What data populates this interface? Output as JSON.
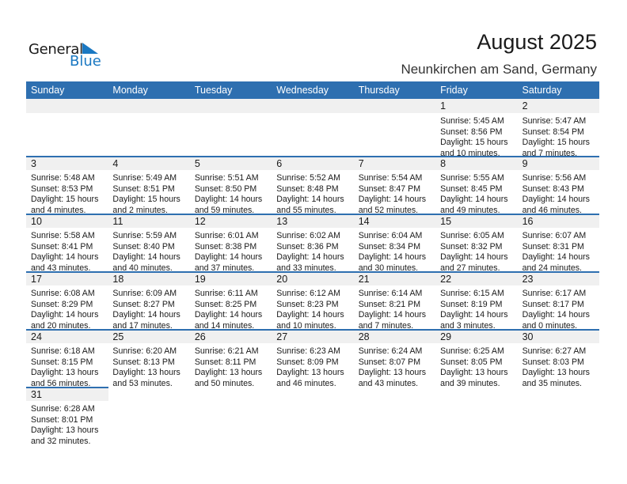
{
  "logo": {
    "word1": "General",
    "word2": "Blue"
  },
  "title": "August 2025",
  "subtitle": "Neunkirchen am Sand, Germany",
  "colors": {
    "header": "#2e6fb0",
    "band": "#f0f0f0",
    "logo_blue": "#1a78c2"
  },
  "weekdays": [
    "Sunday",
    "Monday",
    "Tuesday",
    "Wednesday",
    "Thursday",
    "Friday",
    "Saturday"
  ],
  "weeks": [
    [
      null,
      null,
      null,
      null,
      null,
      {
        "day": "1",
        "lines": [
          "Sunrise: 5:45 AM",
          "Sunset: 8:56 PM",
          "Daylight: 15 hours",
          "and 10 minutes."
        ]
      },
      {
        "day": "2",
        "lines": [
          "Sunrise: 5:47 AM",
          "Sunset: 8:54 PM",
          "Daylight: 15 hours",
          "and 7 minutes."
        ]
      }
    ],
    [
      {
        "day": "3",
        "lines": [
          "Sunrise: 5:48 AM",
          "Sunset: 8:53 PM",
          "Daylight: 15 hours",
          "and 4 minutes."
        ]
      },
      {
        "day": "4",
        "lines": [
          "Sunrise: 5:49 AM",
          "Sunset: 8:51 PM",
          "Daylight: 15 hours",
          "and 2 minutes."
        ]
      },
      {
        "day": "5",
        "lines": [
          "Sunrise: 5:51 AM",
          "Sunset: 8:50 PM",
          "Daylight: 14 hours",
          "and 59 minutes."
        ]
      },
      {
        "day": "6",
        "lines": [
          "Sunrise: 5:52 AM",
          "Sunset: 8:48 PM",
          "Daylight: 14 hours",
          "and 55 minutes."
        ]
      },
      {
        "day": "7",
        "lines": [
          "Sunrise: 5:54 AM",
          "Sunset: 8:47 PM",
          "Daylight: 14 hours",
          "and 52 minutes."
        ]
      },
      {
        "day": "8",
        "lines": [
          "Sunrise: 5:55 AM",
          "Sunset: 8:45 PM",
          "Daylight: 14 hours",
          "and 49 minutes."
        ]
      },
      {
        "day": "9",
        "lines": [
          "Sunrise: 5:56 AM",
          "Sunset: 8:43 PM",
          "Daylight: 14 hours",
          "and 46 minutes."
        ]
      }
    ],
    [
      {
        "day": "10",
        "lines": [
          "Sunrise: 5:58 AM",
          "Sunset: 8:41 PM",
          "Daylight: 14 hours",
          "and 43 minutes."
        ]
      },
      {
        "day": "11",
        "lines": [
          "Sunrise: 5:59 AM",
          "Sunset: 8:40 PM",
          "Daylight: 14 hours",
          "and 40 minutes."
        ]
      },
      {
        "day": "12",
        "lines": [
          "Sunrise: 6:01 AM",
          "Sunset: 8:38 PM",
          "Daylight: 14 hours",
          "and 37 minutes."
        ]
      },
      {
        "day": "13",
        "lines": [
          "Sunrise: 6:02 AM",
          "Sunset: 8:36 PM",
          "Daylight: 14 hours",
          "and 33 minutes."
        ]
      },
      {
        "day": "14",
        "lines": [
          "Sunrise: 6:04 AM",
          "Sunset: 8:34 PM",
          "Daylight: 14 hours",
          "and 30 minutes."
        ]
      },
      {
        "day": "15",
        "lines": [
          "Sunrise: 6:05 AM",
          "Sunset: 8:32 PM",
          "Daylight: 14 hours",
          "and 27 minutes."
        ]
      },
      {
        "day": "16",
        "lines": [
          "Sunrise: 6:07 AM",
          "Sunset: 8:31 PM",
          "Daylight: 14 hours",
          "and 24 minutes."
        ]
      }
    ],
    [
      {
        "day": "17",
        "lines": [
          "Sunrise: 6:08 AM",
          "Sunset: 8:29 PM",
          "Daylight: 14 hours",
          "and 20 minutes."
        ]
      },
      {
        "day": "18",
        "lines": [
          "Sunrise: 6:09 AM",
          "Sunset: 8:27 PM",
          "Daylight: 14 hours",
          "and 17 minutes."
        ]
      },
      {
        "day": "19",
        "lines": [
          "Sunrise: 6:11 AM",
          "Sunset: 8:25 PM",
          "Daylight: 14 hours",
          "and 14 minutes."
        ]
      },
      {
        "day": "20",
        "lines": [
          "Sunrise: 6:12 AM",
          "Sunset: 8:23 PM",
          "Daylight: 14 hours",
          "and 10 minutes."
        ]
      },
      {
        "day": "21",
        "lines": [
          "Sunrise: 6:14 AM",
          "Sunset: 8:21 PM",
          "Daylight: 14 hours",
          "and 7 minutes."
        ]
      },
      {
        "day": "22",
        "lines": [
          "Sunrise: 6:15 AM",
          "Sunset: 8:19 PM",
          "Daylight: 14 hours",
          "and 3 minutes."
        ]
      },
      {
        "day": "23",
        "lines": [
          "Sunrise: 6:17 AM",
          "Sunset: 8:17 PM",
          "Daylight: 14 hours",
          "and 0 minutes."
        ]
      }
    ],
    [
      {
        "day": "24",
        "lines": [
          "Sunrise: 6:18 AM",
          "Sunset: 8:15 PM",
          "Daylight: 13 hours",
          "and 56 minutes."
        ]
      },
      {
        "day": "25",
        "lines": [
          "Sunrise: 6:20 AM",
          "Sunset: 8:13 PM",
          "Daylight: 13 hours",
          "and 53 minutes."
        ]
      },
      {
        "day": "26",
        "lines": [
          "Sunrise: 6:21 AM",
          "Sunset: 8:11 PM",
          "Daylight: 13 hours",
          "and 50 minutes."
        ]
      },
      {
        "day": "27",
        "lines": [
          "Sunrise: 6:23 AM",
          "Sunset: 8:09 PM",
          "Daylight: 13 hours",
          "and 46 minutes."
        ]
      },
      {
        "day": "28",
        "lines": [
          "Sunrise: 6:24 AM",
          "Sunset: 8:07 PM",
          "Daylight: 13 hours",
          "and 43 minutes."
        ]
      },
      {
        "day": "29",
        "lines": [
          "Sunrise: 6:25 AM",
          "Sunset: 8:05 PM",
          "Daylight: 13 hours",
          "and 39 minutes."
        ]
      },
      {
        "day": "30",
        "lines": [
          "Sunrise: 6:27 AM",
          "Sunset: 8:03 PM",
          "Daylight: 13 hours",
          "and 35 minutes."
        ]
      }
    ],
    [
      {
        "day": "31",
        "lines": [
          "Sunrise: 6:28 AM",
          "Sunset: 8:01 PM",
          "Daylight: 13 hours",
          "and 32 minutes."
        ]
      },
      null,
      null,
      null,
      null,
      null,
      null
    ]
  ]
}
